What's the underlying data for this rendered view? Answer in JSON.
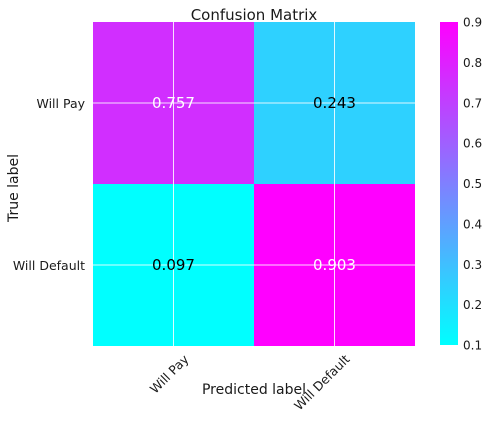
{
  "chart_data": {
    "type": "heatmap",
    "title": "Confusion Matrix",
    "xlabel": "Predicted label",
    "ylabel": "True label",
    "x_categories": [
      "Will Pay",
      "Will Default"
    ],
    "y_categories": [
      "Will Pay",
      "Will Default"
    ],
    "values": [
      [
        0.757,
        0.243
      ],
      [
        0.097,
        0.903
      ]
    ],
    "value_labels": [
      [
        "0.757",
        "0.243"
      ],
      [
        "0.097",
        "0.903"
      ]
    ],
    "value_label_colors": [
      [
        "#ffffff",
        "#000000"
      ],
      [
        "#000000",
        "#ffffff"
      ]
    ],
    "colormap": "cool",
    "colormap_colors": [
      "#00ffff",
      "#ff00ff"
    ],
    "colorbar": {
      "range": [
        0.1,
        0.9
      ],
      "ticks": [
        0.1,
        0.2,
        0.3,
        0.4,
        0.5,
        0.6,
        0.7,
        0.8,
        0.9
      ],
      "tick_labels": [
        "0.1",
        "0.2",
        "0.3",
        "0.4",
        "0.5",
        "0.6",
        "0.7",
        "0.8",
        "0.9"
      ]
    },
    "grid": true,
    "x_tick_rotation": "45 degrees"
  }
}
